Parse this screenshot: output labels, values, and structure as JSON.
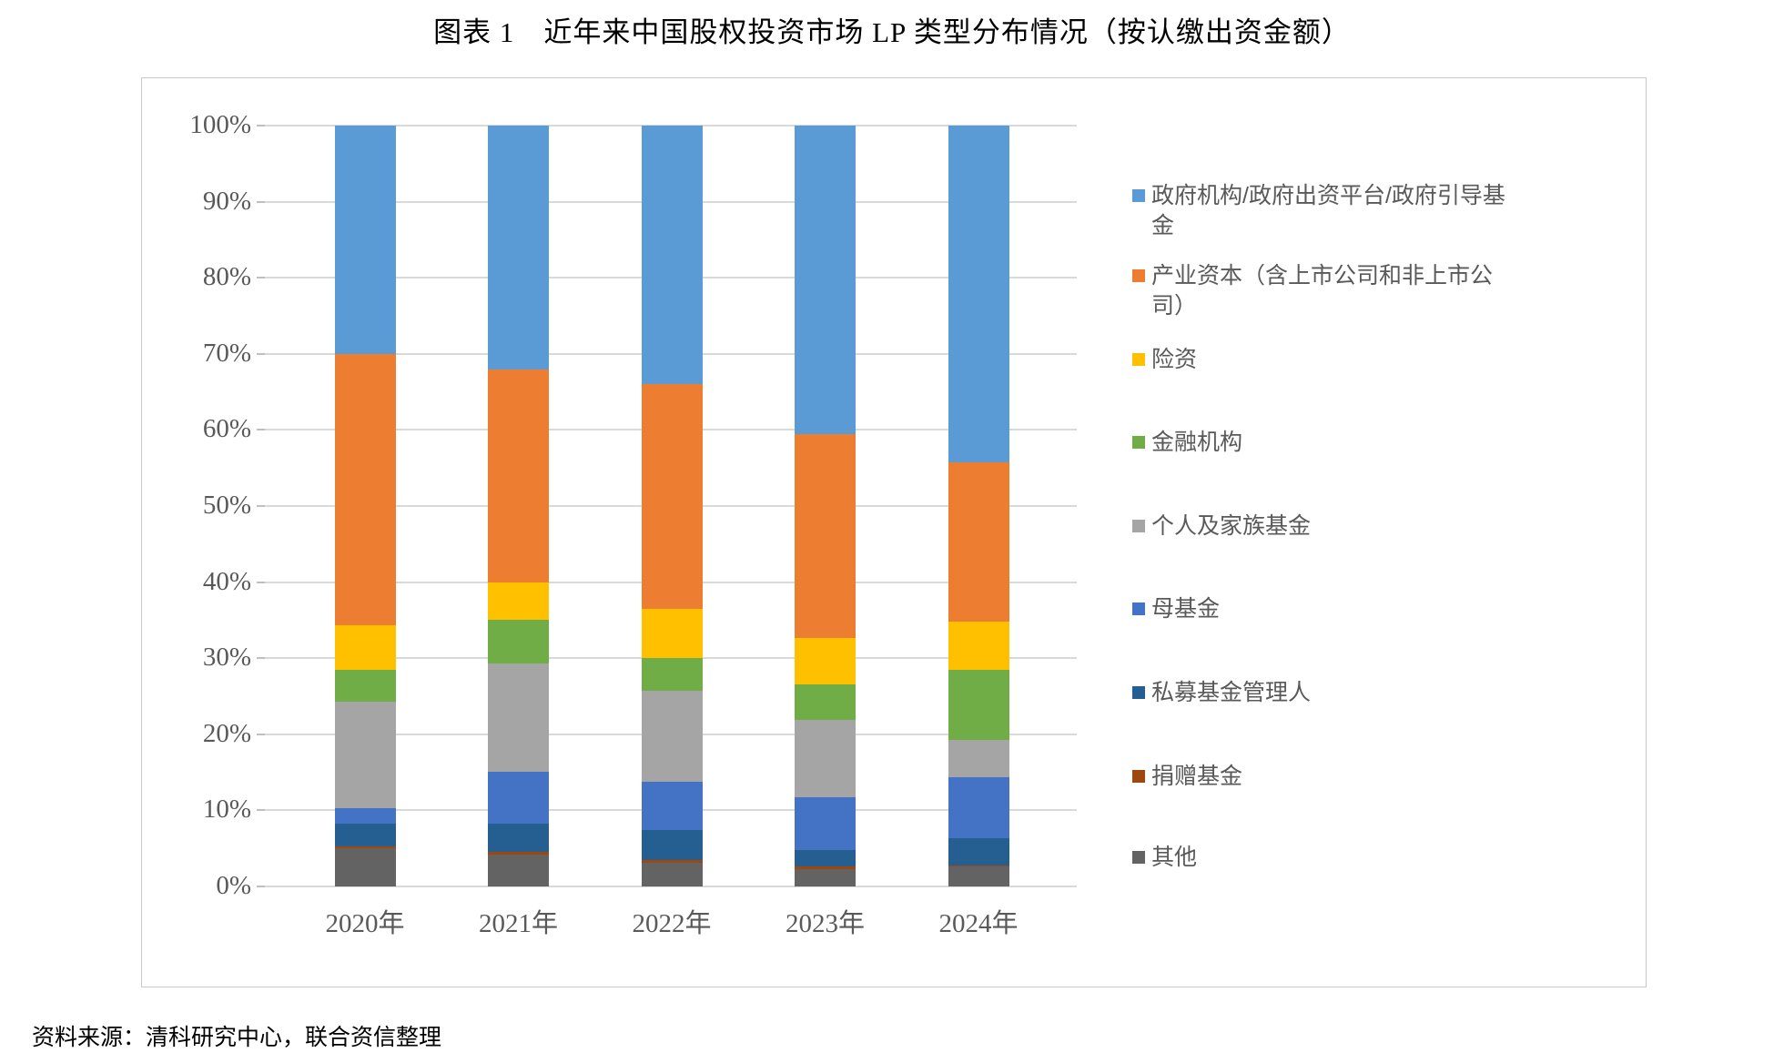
{
  "title": "图表 1　近年来中国股权投资市场 LP 类型分布情况（按认缴出资金额）",
  "source_note": "资料来源：清科研究中心，联合资信整理",
  "colors": {
    "grid": "#d9d9d9",
    "axis_text": "#595959",
    "chart_border": "#c9c9c9"
  },
  "chart_data": {
    "type": "bar",
    "subtype": "stacked-100-percent",
    "title": "",
    "xlabel": "",
    "ylabel": "",
    "ylim": [
      0,
      100
    ],
    "grid": "horizontal",
    "legend_position": "right",
    "y_tick_labels": [
      "0%",
      "10%",
      "20%",
      "30%",
      "40%",
      "50%",
      "60%",
      "70%",
      "80%",
      "90%",
      "100%"
    ],
    "categories": [
      "2020年",
      "2021年",
      "2022年",
      "2023年",
      "2024年"
    ],
    "series": [
      {
        "name": "政府机构/政府出资平台/政府引导基金",
        "legend_label": "政府机构/政府出资平台/政府引导基\n金",
        "color": "#5b9bd5",
        "values": [
          30.0,
          32.0,
          34.0,
          40.6,
          44.3
        ]
      },
      {
        "name": "产业资本（含上市公司和非上市公司）",
        "legend_label": "产业资本（含上市公司和非上市公\n司）",
        "color": "#ed7d31",
        "values": [
          35.7,
          28.0,
          29.5,
          26.8,
          20.9
        ]
      },
      {
        "name": "险资",
        "legend_label": "险资",
        "color": "#ffc000",
        "values": [
          5.8,
          5.0,
          6.5,
          6.0,
          6.3
        ]
      },
      {
        "name": "金融机构",
        "legend_label": "金融机构",
        "color": "#70ad47",
        "values": [
          4.2,
          5.7,
          4.3,
          4.7,
          9.2
        ]
      },
      {
        "name": "个人及家族基金",
        "legend_label": "个人及家族基金",
        "color": "#a5a5a5",
        "values": [
          14.0,
          14.2,
          12.0,
          10.2,
          5.0
        ]
      },
      {
        "name": "母基金",
        "legend_label": "母基金",
        "color": "#4472c4",
        "values": [
          2.1,
          6.9,
          6.3,
          6.9,
          7.9
        ]
      },
      {
        "name": "私募基金管理人",
        "legend_label": "私募基金管理人",
        "color": "#255e91",
        "values": [
          2.9,
          3.6,
          3.9,
          2.2,
          3.7
        ]
      },
      {
        "name": "捐赠基金",
        "legend_label": "捐赠基金",
        "color": "#9e480e",
        "values": [
          0.3,
          0.4,
          0.4,
          0.3,
          0.1
        ]
      },
      {
        "name": "其他",
        "legend_label": "其他",
        "color": "#636363",
        "values": [
          5.0,
          4.2,
          3.1,
          2.3,
          2.6
        ]
      }
    ]
  }
}
